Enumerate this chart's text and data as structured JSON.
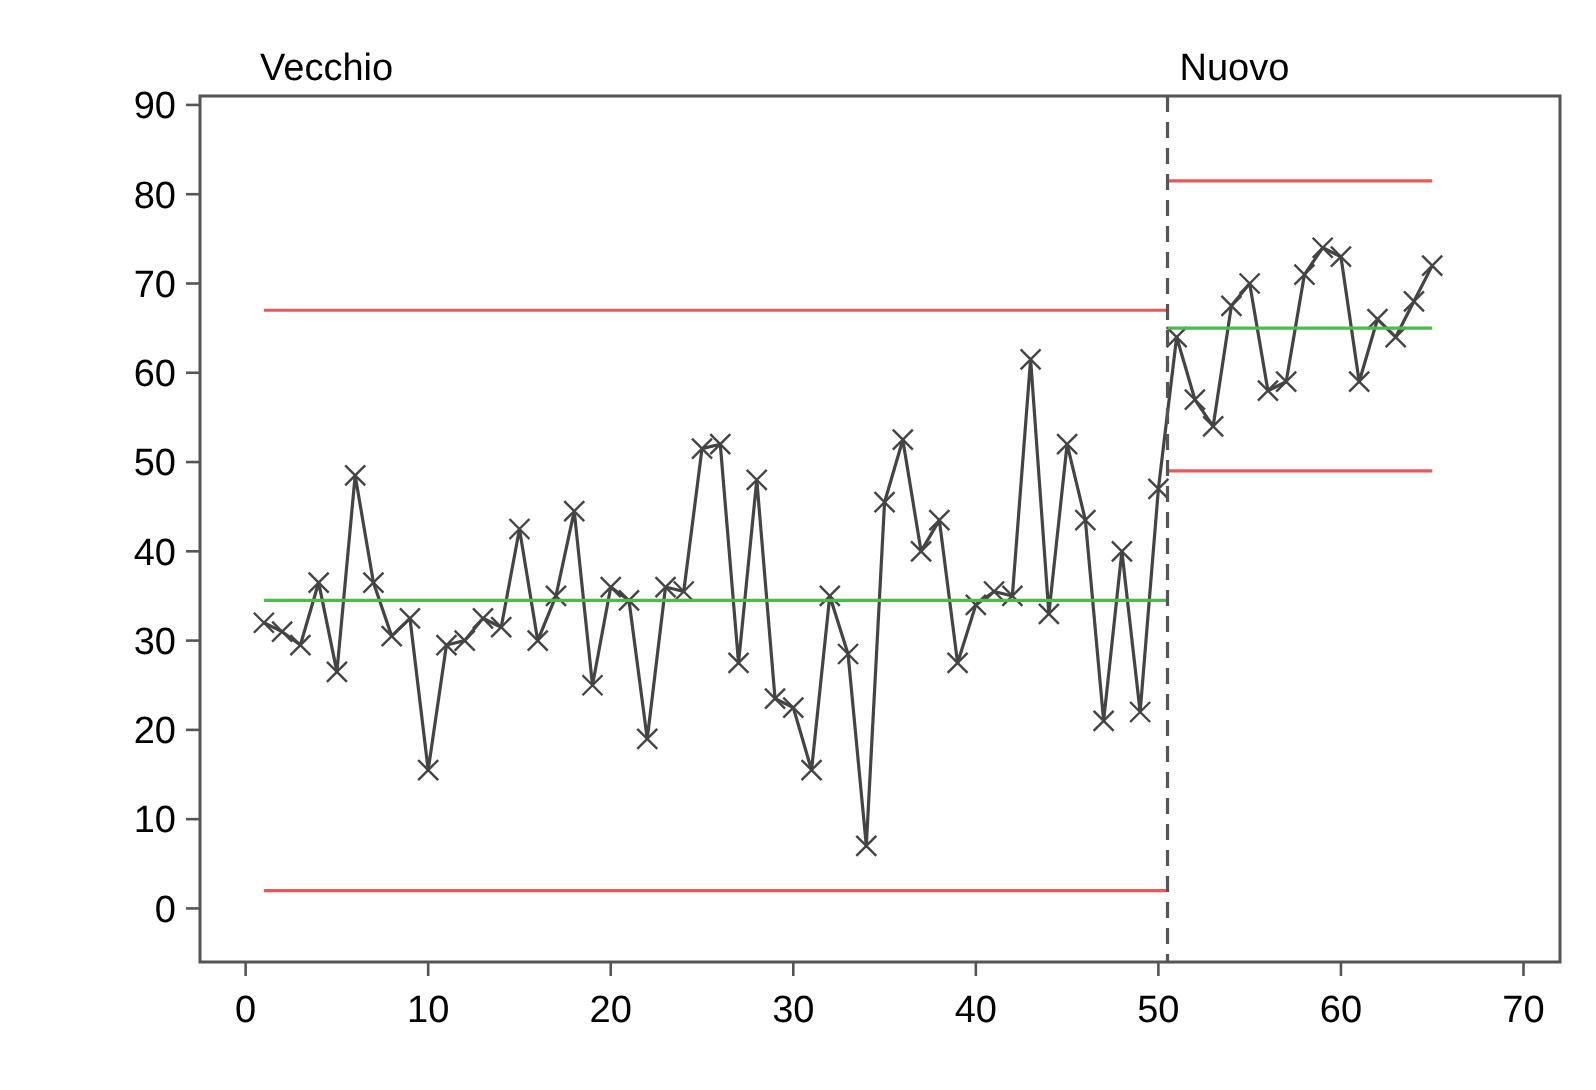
{
  "chart_data": {
    "type": "line",
    "xlim": [
      -2.5,
      72
    ],
    "ylim": [
      -6,
      91
    ],
    "xticks": [
      0,
      10,
      20,
      30,
      40,
      50,
      60,
      70
    ],
    "yticks": [
      0,
      10,
      20,
      30,
      40,
      50,
      60,
      70,
      80,
      90
    ],
    "grid": false,
    "annotations": [
      "Vecchio",
      "Nuovo"
    ],
    "ref_lines": [
      {
        "axis": "x",
        "value": 50.5,
        "color": "#555555",
        "line_style": "dashed"
      }
    ],
    "series": [
      {
        "color": "#444444",
        "marker": "cross",
        "x": [
          1,
          2,
          3,
          4,
          5,
          6,
          7,
          8,
          9,
          10,
          11,
          12,
          13,
          14,
          15,
          16,
          17,
          18,
          19,
          20,
          21,
          22,
          23,
          24,
          25,
          26,
          27,
          28,
          29,
          30,
          31,
          32,
          33,
          34,
          35,
          36,
          37,
          38,
          39,
          40,
          41,
          42,
          43,
          44,
          45,
          46,
          47,
          48,
          49,
          50,
          51,
          52,
          53,
          54,
          55,
          56,
          57,
          58,
          59,
          60,
          61,
          62,
          63,
          64,
          65
        ],
        "values": [
          32,
          31,
          29.5,
          36.5,
          26.5,
          48.5,
          36.5,
          30.5,
          32.5,
          15.5,
          29.5,
          30,
          32.5,
          31.5,
          42.5,
          30,
          35,
          44.5,
          25,
          36,
          34.5,
          19,
          36,
          35.5,
          51.5,
          52,
          27.5,
          48,
          23.5,
          22.5,
          15.5,
          35,
          28.5,
          7,
          45.5,
          52.5,
          40,
          43.5,
          27.5,
          34,
          35.5,
          35,
          61.5,
          33,
          52,
          43.5,
          21,
          40,
          22,
          47,
          64,
          57,
          54,
          67.5,
          70,
          58,
          59,
          71,
          74,
          73,
          59,
          66,
          64,
          68,
          72
        ]
      },
      {
        "color": "#e8595a",
        "marker": "none",
        "x": [
          1,
          50.5
        ],
        "values": [
          67,
          67
        ]
      },
      {
        "color": "#e8595a",
        "marker": "none",
        "x": [
          1,
          50.5
        ],
        "values": [
          2,
          2
        ]
      },
      {
        "color": "#4cbb4c",
        "marker": "none",
        "x": [
          1,
          50.5
        ],
        "values": [
          34.5,
          34.5
        ]
      },
      {
        "color": "#e8595a",
        "marker": "none",
        "x": [
          50.5,
          65
        ],
        "values": [
          81.5,
          81.5
        ]
      },
      {
        "color": "#e8595a",
        "marker": "none",
        "x": [
          50.5,
          65
        ],
        "values": [
          49,
          49
        ]
      },
      {
        "color": "#4cbb4c",
        "marker": "none",
        "x": [
          50.5,
          65
        ],
        "values": [
          65,
          65
        ]
      }
    ]
  }
}
